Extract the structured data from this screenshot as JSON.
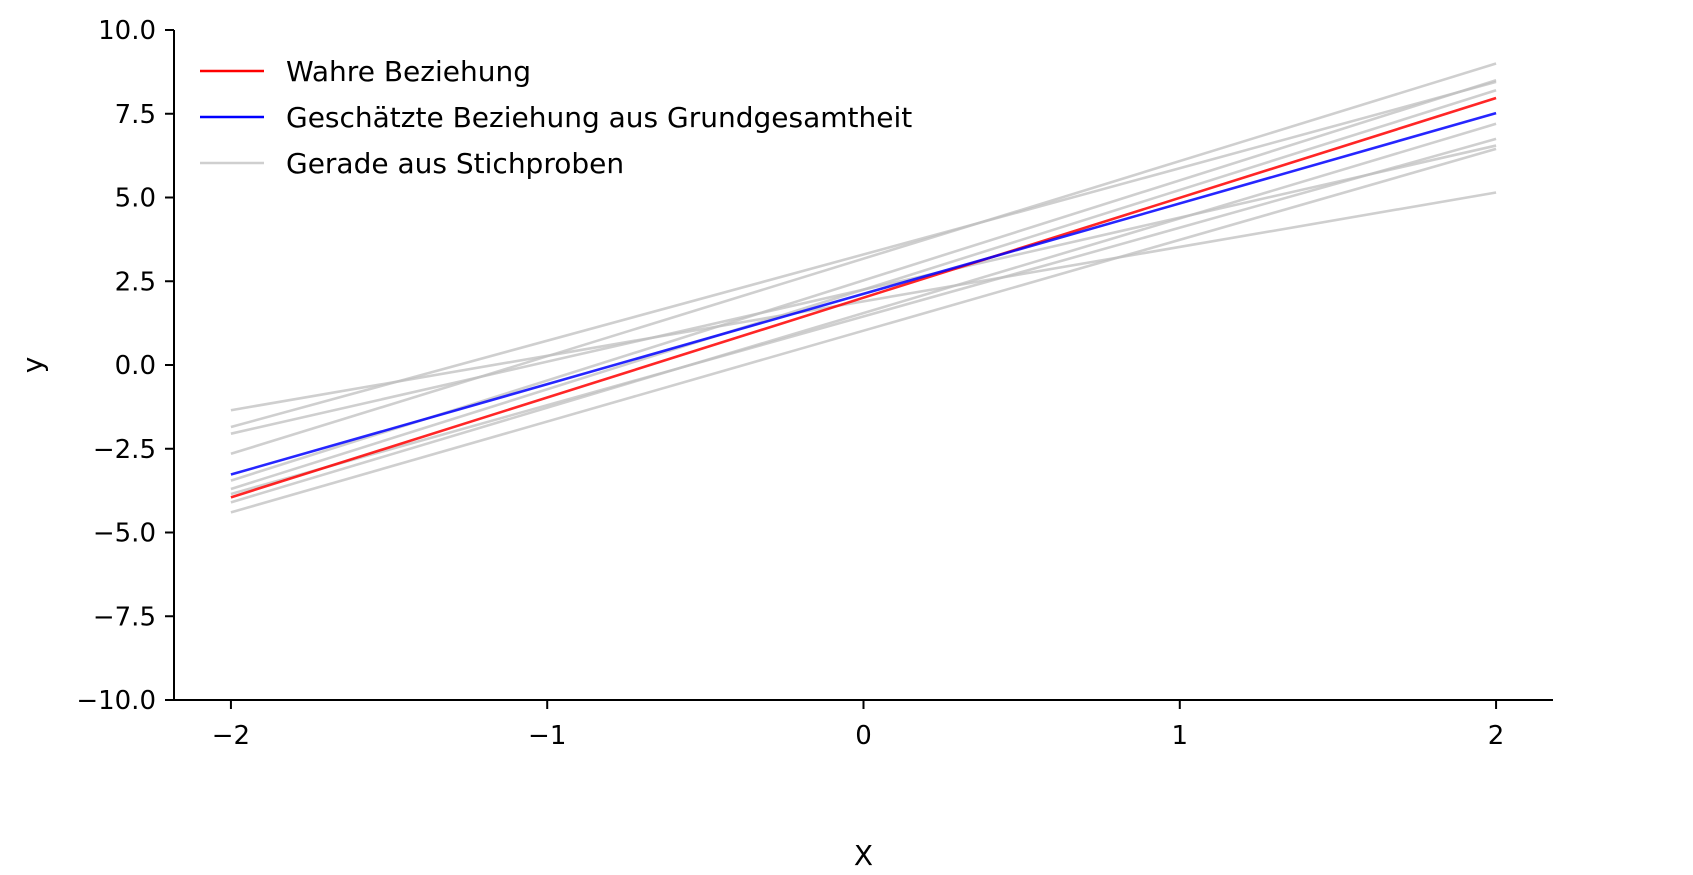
{
  "chart_data": {
    "type": "line",
    "title": "",
    "xlabel": "X",
    "ylabel": "y",
    "xlim": [
      -2.18,
      2.18
    ],
    "ylim": [
      -10,
      10
    ],
    "xticks": [
      -2,
      -1,
      0,
      1,
      2
    ],
    "xtick_labels": [
      "−2",
      "−1",
      "0",
      "1",
      "2"
    ],
    "yticks": [
      -10,
      -7.5,
      -5,
      -2.5,
      0,
      2.5,
      5,
      7.5,
      10
    ],
    "ytick_labels": [
      "−10.0",
      "−7.5",
      "−5.0",
      "−2.5",
      "0.0",
      "2.5",
      "5.0",
      "7.5",
      "10.0"
    ],
    "grid": false,
    "legend_position": "top-left",
    "series": [
      {
        "name": "Wahre Beziehung",
        "color": "#ff0000",
        "x": [
          -2,
          2
        ],
        "y": [
          -3.95,
          7.97
        ]
      },
      {
        "name": "Geschätzte Beziehung aus Grundgesamtheit",
        "color": "#0000ff",
        "x": [
          -2,
          2
        ],
        "y": [
          -3.27,
          7.52
        ]
      },
      {
        "name": "Gerade aus Stichproben",
        "color": "#bfbfbf",
        "x": [
          -2,
          2
        ],
        "y": [
          -1.35,
          5.15
        ]
      },
      {
        "color": "#bfbfbf",
        "x": [
          -2,
          2
        ],
        "y": [
          -1.85,
          8.45
        ]
      },
      {
        "color": "#bfbfbf",
        "x": [
          -2,
          2
        ],
        "y": [
          -2.05,
          6.55
        ]
      },
      {
        "color": "#bfbfbf",
        "x": [
          -2,
          2
        ],
        "y": [
          -2.65,
          9.0
        ]
      },
      {
        "color": "#bfbfbf",
        "x": [
          -2,
          2
        ],
        "y": [
          -3.45,
          8.5
        ]
      },
      {
        "color": "#bfbfbf",
        "x": [
          -2,
          2
        ],
        "y": [
          -3.7,
          8.2
        ]
      },
      {
        "color": "#bfbfbf",
        "x": [
          -2,
          2
        ],
        "y": [
          -3.85,
          6.75
        ]
      },
      {
        "color": "#bfbfbf",
        "x": [
          -2,
          2
        ],
        "y": [
          -4.1,
          7.2
        ]
      },
      {
        "color": "#bfbfbf",
        "x": [
          -2,
          2
        ],
        "y": [
          -4.4,
          6.45
        ]
      }
    ]
  }
}
